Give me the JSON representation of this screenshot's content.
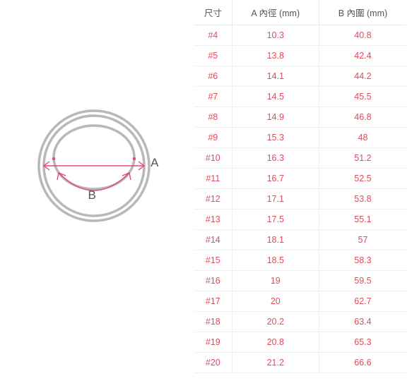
{
  "diagram": {
    "outer_ring_color": "#b8b8b8",
    "inner_ring_color": "#b8b8b8",
    "arrow_color": "#e6457e",
    "label_color": "#555555",
    "label_A": "A",
    "label_B": "B",
    "ring_stroke_width": 3.5,
    "outer_diameter": 160,
    "inner_diameter": 115,
    "diagram_type": "ring-size-illustration"
  },
  "table": {
    "header_color": "#555555",
    "value_color": "#e24b5a",
    "border_color": "#e8e8e8",
    "background_color": "#ffffff",
    "font_size": 12.5,
    "columns": [
      "尺寸",
      "A 內徑 (mm)",
      "B 內圍 (mm)"
    ],
    "rows": [
      [
        "#4",
        "10.3",
        "40.8"
      ],
      [
        "#5",
        "13.8",
        "42.4"
      ],
      [
        "#6",
        "14.1",
        "44.2"
      ],
      [
        "#7",
        "14.5",
        "45.5"
      ],
      [
        "#8",
        "14.9",
        "46.8"
      ],
      [
        "#9",
        "15.3",
        "48"
      ],
      [
        "#10",
        "16.3",
        "51.2"
      ],
      [
        "#11",
        "16.7",
        "52.5"
      ],
      [
        "#12",
        "17.1",
        "53.8"
      ],
      [
        "#13",
        "17.5",
        "55.1"
      ],
      [
        "#14",
        "18.1",
        "57"
      ],
      [
        "#15",
        "18.5",
        "58.3"
      ],
      [
        "#16",
        "19",
        "59.5"
      ],
      [
        "#17",
        "20",
        "62.7"
      ],
      [
        "#18",
        "20.2",
        "63.4"
      ],
      [
        "#19",
        "20.8",
        "65.3"
      ],
      [
        "#20",
        "21.2",
        "66.6"
      ]
    ]
  }
}
